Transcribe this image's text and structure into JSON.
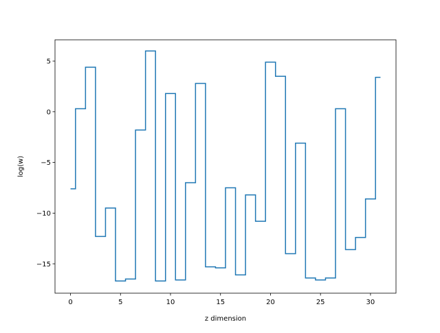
{
  "chart_data": {
    "type": "line",
    "drawstyle": "steps-mid",
    "title": "",
    "xlabel": "z dimension",
    "ylabel": "log(w)",
    "xlim": [
      -1.55,
      32.55
    ],
    "ylim": [
      -17.9,
      7.1
    ],
    "x_ticks": [
      0,
      5,
      10,
      15,
      20,
      25,
      30
    ],
    "x_tick_labels": [
      "0",
      "5",
      "10",
      "15",
      "20",
      "25",
      "30"
    ],
    "y_ticks": [
      -15,
      -10,
      -5,
      0,
      5
    ],
    "y_tick_labels": [
      "−15",
      "−10",
      "−5",
      "0",
      "5"
    ],
    "grid": false,
    "series": [
      {
        "color": "#1f77b4",
        "x": [
          0,
          1,
          2,
          3,
          4,
          5,
          6,
          7,
          8,
          9,
          10,
          11,
          12,
          13,
          14,
          15,
          16,
          17,
          18,
          19,
          20,
          21,
          22,
          23,
          24,
          25,
          26,
          27,
          28,
          29,
          30,
          31
        ],
        "values": [
          -7.6,
          0.3,
          4.4,
          -12.3,
          -9.5,
          -16.7,
          -16.5,
          -1.8,
          6.0,
          -16.7,
          1.8,
          -16.6,
          -7.0,
          2.8,
          -15.3,
          -15.4,
          -7.5,
          -16.1,
          -8.2,
          -10.8,
          4.9,
          3.5,
          -14.0,
          -3.1,
          -16.4,
          -16.6,
          -16.4,
          0.3,
          -13.6,
          -12.4,
          -8.6,
          3.4
        ]
      }
    ]
  }
}
